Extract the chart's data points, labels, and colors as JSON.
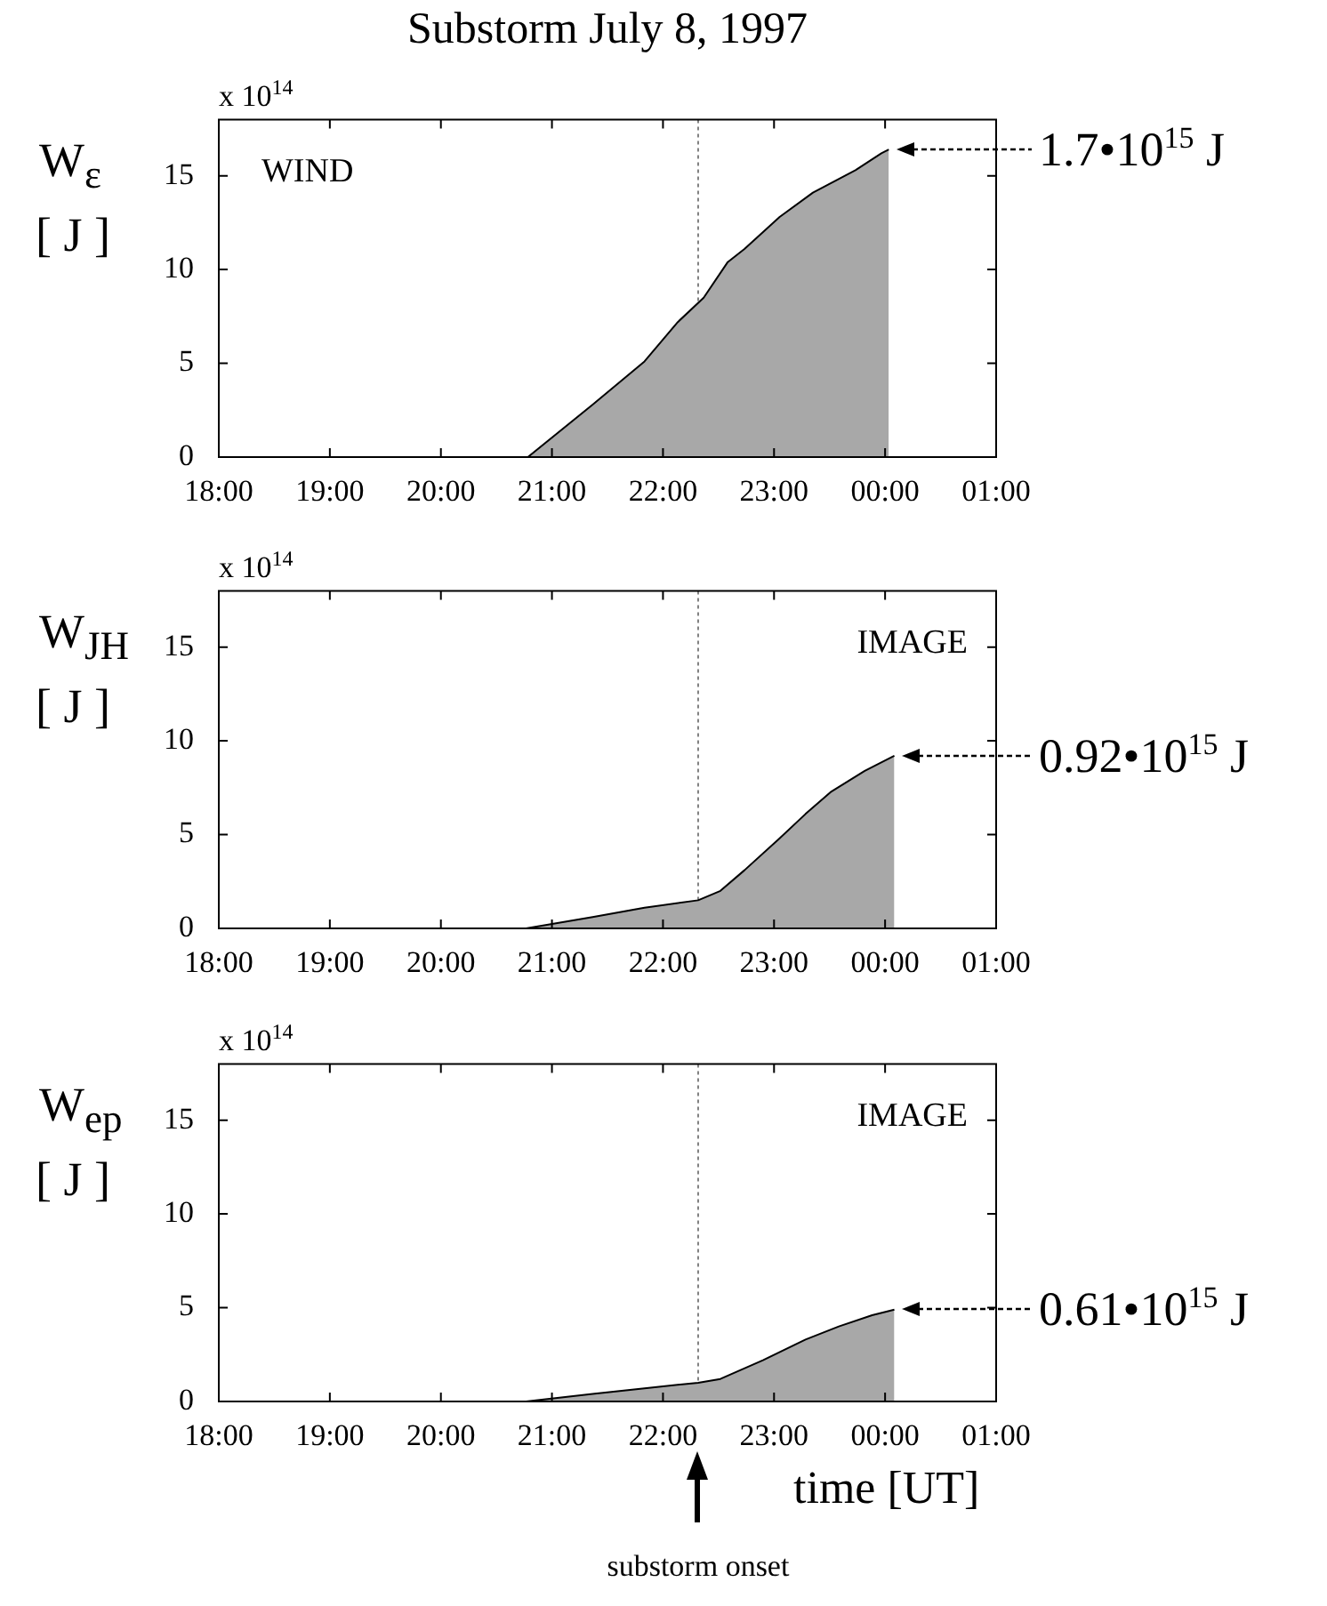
{
  "chart_data": [
    {
      "type": "area",
      "title": "Substorm  July  8,  1997",
      "ylabel": "W$_{ε}$\n[ J ]",
      "annotations": [
        "x 10$^{14}$",
        "WIND",
        "1.7•10$^{15}$ J"
      ],
      "x": [
        "1997-07-08T20:47",
        "1997-07-08T21:22",
        "1997-07-08T21:50",
        "1997-07-08T22:08",
        "1997-07-08T22:22",
        "1997-07-08T22:35",
        "1997-07-08T22:44",
        "1997-07-08T23:03",
        "1997-07-08T23:21",
        "1997-07-08T23:44",
        "1997-07-08T23:58",
        "1997-07-09T00:02"
      ],
      "series": [
        {
          "color": "#a8a8a8",
          "values": [
            0,
            2.8,
            5.1,
            7.2,
            8.5,
            10.4,
            11.1,
            12.8,
            14.1,
            15.3,
            16.2,
            16.4
          ]
        }
      ],
      "xlim": [
        "1997-07-08T18:00",
        "1997-07-09T01:00"
      ],
      "xticks": [
        {
          "value": "1997-07-08T18:00",
          "label": "18:00"
        },
        {
          "value": "1997-07-08T19:00",
          "label": "19:00"
        },
        {
          "value": "1997-07-08T20:00",
          "label": "20:00"
        },
        {
          "value": "1997-07-08T21:00",
          "label": "21:00"
        },
        {
          "value": "1997-07-08T22:00",
          "label": "22:00"
        },
        {
          "value": "1997-07-08T23:00",
          "label": "23:00"
        },
        {
          "value": "1997-07-09T00:00",
          "label": "00:00"
        },
        {
          "value": "1997-07-09T01:00",
          "label": "01:00"
        }
      ],
      "ylim": [
        0,
        18
      ],
      "yticks": [
        0,
        5,
        10,
        15
      ],
      "ref_lines": [
        {
          "axis": "x",
          "value": "1997-07-08T22:19",
          "color": "#808080",
          "line_style": "dotted"
        }
      ]
    },
    {
      "type": "area",
      "ylabel": "W$_{JH}$\n[ J ]",
      "annotations": [
        "x 10$^{14}$",
        "IMAGE",
        "0.92•10$^{15}$ J"
      ],
      "x": [
        "1997-07-08T20:46",
        "1997-07-08T21:22",
        "1997-07-08T21:50",
        "1997-07-08T22:19",
        "1997-07-08T22:31",
        "1997-07-08T22:44",
        "1997-07-08T23:03",
        "1997-07-08T23:17",
        "1997-07-08T23:31",
        "1997-07-08T23:49",
        "1997-07-09T00:05"
      ],
      "series": [
        {
          "color": "#a8a8a8",
          "values": [
            0,
            0.6,
            1.1,
            1.5,
            2.0,
            3.1,
            4.8,
            6.1,
            7.3,
            8.4,
            9.2
          ]
        }
      ],
      "xlim": [
        "1997-07-08T18:00",
        "1997-07-09T01:00"
      ],
      "xticks": [
        {
          "value": "1997-07-08T18:00",
          "label": "18:00"
        },
        {
          "value": "1997-07-08T19:00",
          "label": "19:00"
        },
        {
          "value": "1997-07-08T20:00",
          "label": "20:00"
        },
        {
          "value": "1997-07-08T21:00",
          "label": "21:00"
        },
        {
          "value": "1997-07-08T22:00",
          "label": "22:00"
        },
        {
          "value": "1997-07-08T23:00",
          "label": "23:00"
        },
        {
          "value": "1997-07-09T00:00",
          "label": "00:00"
        },
        {
          "value": "1997-07-09T01:00",
          "label": "01:00"
        }
      ],
      "ylim": [
        0,
        18
      ],
      "yticks": [
        0,
        5,
        10,
        15
      ],
      "ref_lines": [
        {
          "axis": "x",
          "value": "1997-07-08T22:19",
          "color": "#808080",
          "line_style": "dotted"
        }
      ]
    },
    {
      "type": "area",
      "xlabel": "time [UT]",
      "ylabel": "W$_{ep}$\n[ J ]",
      "annotations": [
        "x 10$^{14}$",
        "IMAGE",
        "0.61•10$^{15}$ J",
        "substorm onset"
      ],
      "x": [
        "1997-07-08T20:46",
        "1997-07-08T21:22",
        "1997-07-08T21:50",
        "1997-07-08T22:19",
        "1997-07-08T22:31",
        "1997-07-08T22:54",
        "1997-07-08T23:17",
        "1997-07-08T23:35",
        "1997-07-08T23:53",
        "1997-07-09T00:05"
      ],
      "series": [
        {
          "color": "#a8a8a8",
          "values": [
            0,
            0.4,
            0.7,
            1.0,
            1.2,
            2.2,
            3.3,
            4.0,
            4.6,
            4.9
          ]
        }
      ],
      "xlim": [
        "1997-07-08T18:00",
        "1997-07-09T01:00"
      ],
      "xticks": [
        {
          "value": "1997-07-08T18:00",
          "label": "18:00"
        },
        {
          "value": "1997-07-08T19:00",
          "label": "19:00"
        },
        {
          "value": "1997-07-08T20:00",
          "label": "20:00"
        },
        {
          "value": "1997-07-08T21:00",
          "label": "21:00"
        },
        {
          "value": "1997-07-08T22:00",
          "label": "22:00"
        },
        {
          "value": "1997-07-08T23:00",
          "label": "23:00"
        },
        {
          "value": "1997-07-09T00:00",
          "label": "00:00"
        },
        {
          "value": "1997-07-09T01:00",
          "label": "01:00"
        }
      ],
      "ylim": [
        0,
        18
      ],
      "yticks": [
        0,
        5,
        10,
        15
      ],
      "ref_lines": [
        {
          "axis": "x",
          "value": "1997-07-08T22:19",
          "color": "#808080",
          "line_style": "dotted"
        }
      ]
    }
  ]
}
